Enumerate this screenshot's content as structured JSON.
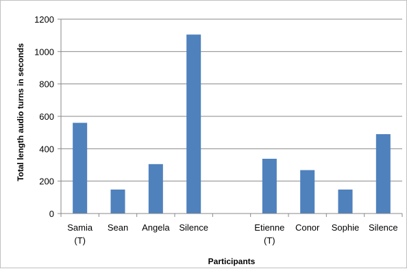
{
  "chart_data": {
    "type": "bar",
    "categories": [
      [
        "Samia",
        "(T)"
      ],
      [
        "Sean"
      ],
      [
        "Angela"
      ],
      [
        "Silence"
      ],
      [
        ""
      ],
      [
        "Etienne",
        "(T)"
      ],
      [
        "Conor"
      ],
      [
        "Sophie"
      ],
      [
        "Silence"
      ]
    ],
    "values": [
      560,
      148,
      305,
      1105,
      null,
      338,
      268,
      148,
      490
    ],
    "xlabel": "Participants",
    "ylabel": "Total length audio turns in seconds",
    "ylim": [
      0,
      1200
    ],
    "yticks": [
      0,
      200,
      400,
      600,
      800,
      1000,
      1200
    ],
    "grid": "horizontal",
    "legend": "none",
    "bar_color": "#4f81bd",
    "grid_color": "#878787"
  }
}
